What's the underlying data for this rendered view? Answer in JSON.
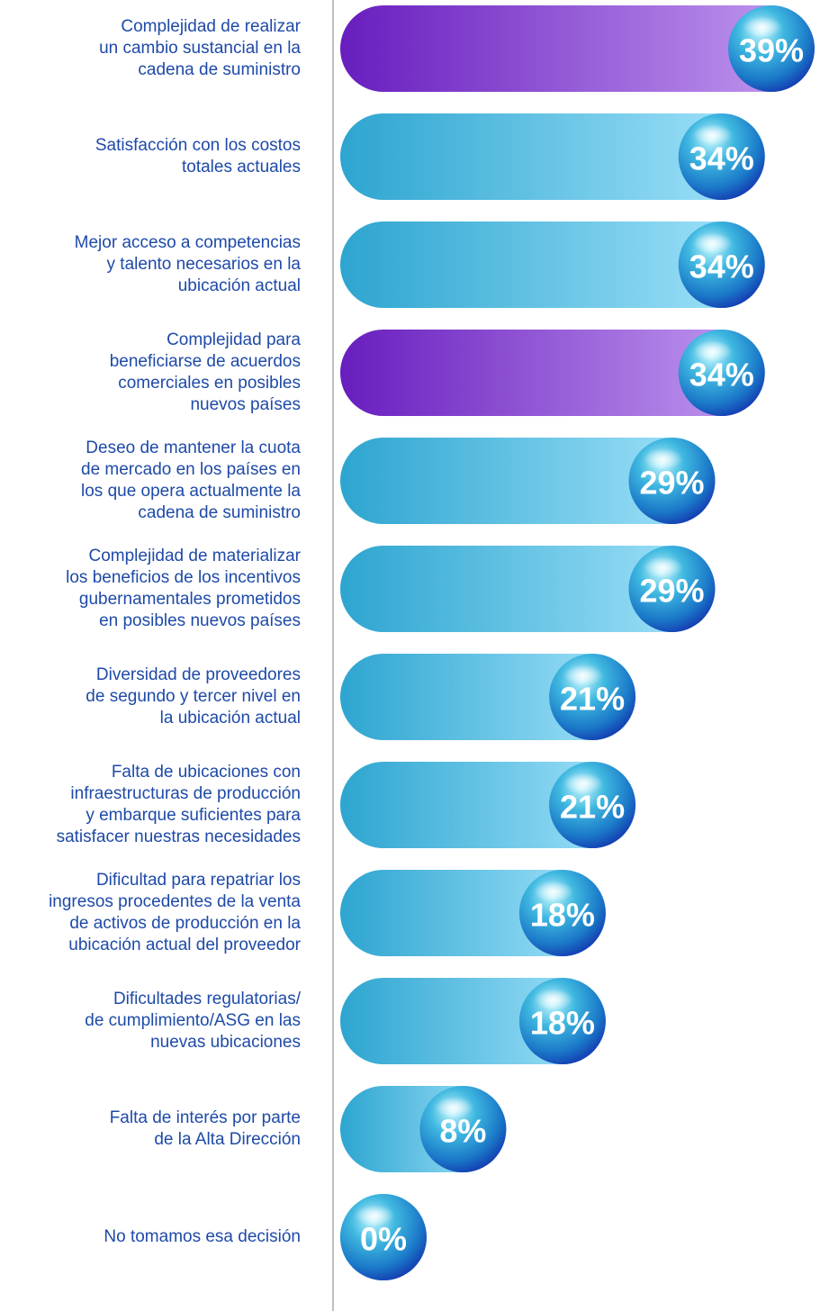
{
  "chart_data": {
    "type": "bar",
    "orientation": "horizontal",
    "categories": [
      "Complejidad de realizar\nun cambio sustancial en la\ncadena de suministro",
      "Satisfacción con los costos\ntotales actuales",
      "Mejor acceso a competencias\ny talento necesarios en la\nubicación actual",
      "Complejidad para\nbeneficiarse de acuerdos\ncomerciales en posibles\nnuevos países",
      "Deseo de mantener la cuota\nde mercado en los países en\nlos que opera actualmente la\ncadena de suministro",
      "Complejidad de materializar\nlos beneficios de los incentivos\ngubernamentales prometidos\nen posibles nuevos países",
      "Diversidad de proveedores\nde segundo y tercer nivel en\nla ubicación actual",
      "Falta de ubicaciones con\ninfraestructuras de producción\ny embarque suficientes para\nsatisfacer nuestras necesidades",
      "Dificultad para repatriar los\ningresos procedentes de la venta\nde activos de producción en la\nubicación actual del proveedor",
      "Dificultades regulatorias/\nde cumplimiento/ASG en las\nnuevas ubicaciones",
      "Falta de interés por parte\nde la Alta Dirección",
      "No tomamos esa decisión"
    ],
    "values": [
      39,
      34,
      34,
      34,
      29,
      29,
      21,
      21,
      18,
      18,
      8,
      0
    ],
    "value_labels": [
      "39%",
      "34%",
      "34%",
      "34%",
      "29%",
      "29%",
      "21%",
      "21%",
      "18%",
      "18%",
      "8%",
      "0%"
    ],
    "colors": [
      "#7a22e0",
      "#35c2f5",
      "#35c2f5",
      "#7a22e0",
      "#35c2f5",
      "#35c2f5",
      "#35c2f5",
      "#35c2f5",
      "#35c2f5",
      "#35c2f5",
      "#35c2f5",
      "#35c2f5"
    ],
    "xlim": [
      0,
      39
    ]
  }
}
